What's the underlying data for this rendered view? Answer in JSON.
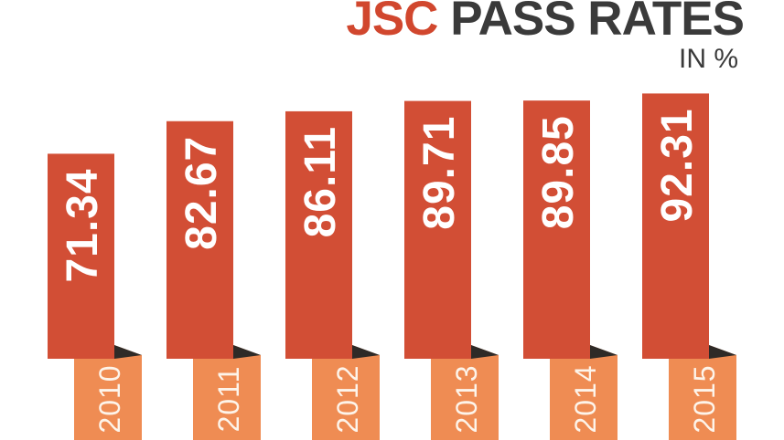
{
  "colors": {
    "background": "#ffffff",
    "bar": "#d24e35",
    "ribbon": "#ef8c53",
    "fold_shadow": "#2e2a27",
    "accent_text": "#d1472e",
    "heading_text": "#3a3a3a",
    "value_text": "#ffffff",
    "year_text": "#fdf4ea"
  },
  "chart_data": {
    "type": "bar",
    "title": "JSC PASS RATES",
    "title_accent": "JSC",
    "title_rest": "PASS RATES",
    "subtitle": "IN %",
    "unit": "%",
    "categories": [
      "2010",
      "2011",
      "2012",
      "2013",
      "2014",
      "2015"
    ],
    "values": [
      71.34,
      82.67,
      86.11,
      89.71,
      89.85,
      92.31
    ],
    "ylim": [
      0,
      100
    ],
    "grid": false,
    "legend": false,
    "axes_shown": false,
    "value_label_position": "inside-top-rotated-90",
    "category_label_position": "ribbon-tab-below-bar-rotated-90"
  }
}
